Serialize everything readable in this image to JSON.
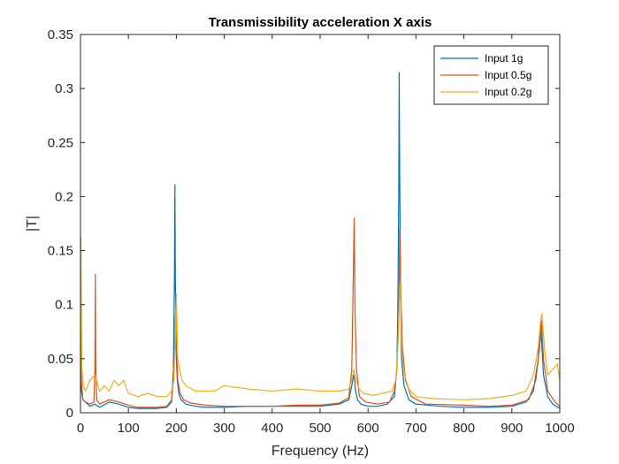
{
  "chart_data": {
    "type": "line",
    "title": "Transmissibility acceleration X axis",
    "xlabel": "Frequency (Hz)",
    "ylabel": "|T|",
    "xlim": [
      0,
      1000
    ],
    "ylim": [
      0,
      0.35
    ],
    "xticks": [
      0,
      100,
      200,
      300,
      400,
      500,
      600,
      700,
      800,
      900,
      1000
    ],
    "yticks": [
      0,
      0.05,
      0.1,
      0.15,
      0.2,
      0.25,
      0.3,
      0.35
    ],
    "ytick_labels": [
      "0",
      "0.05",
      "0.1",
      "0.15",
      "0.2",
      "0.25",
      "0.3",
      "0.35"
    ],
    "grid": false,
    "legend_position": "top-right",
    "series": [
      {
        "name": "Input 1g",
        "color": "#0072BD",
        "x": [
          0,
          2,
          5,
          10,
          20,
          30,
          40,
          60,
          80,
          100,
          120,
          140,
          160,
          180,
          190,
          194,
          196,
          197,
          198,
          200,
          202,
          205,
          210,
          220,
          240,
          260,
          300,
          350,
          400,
          450,
          500,
          540,
          560,
          566,
          570,
          572,
          574,
          578,
          585,
          600,
          620,
          640,
          655,
          660,
          662,
          664,
          665,
          666,
          668,
          670,
          675,
          685,
          700,
          750,
          800,
          850,
          900,
          930,
          945,
          955,
          960,
          963,
          966,
          975,
          985,
          1000
        ],
        "y": [
          0.06,
          0.02,
          0.012,
          0.01,
          0.006,
          0.008,
          0.005,
          0.01,
          0.008,
          0.005,
          0.004,
          0.004,
          0.004,
          0.005,
          0.01,
          0.04,
          0.12,
          0.211,
          0.12,
          0.05,
          0.03,
          0.018,
          0.012,
          0.008,
          0.006,
          0.005,
          0.005,
          0.006,
          0.006,
          0.006,
          0.006,
          0.008,
          0.012,
          0.025,
          0.035,
          0.03,
          0.02,
          0.012,
          0.008,
          0.006,
          0.006,
          0.008,
          0.015,
          0.04,
          0.09,
          0.2,
          0.315,
          0.22,
          0.1,
          0.05,
          0.025,
          0.012,
          0.008,
          0.006,
          0.005,
          0.005,
          0.006,
          0.01,
          0.02,
          0.05,
          0.082,
          0.06,
          0.035,
          0.015,
          0.008,
          0.004
        ]
      },
      {
        "name": "Input 0.5g",
        "color": "#D95319",
        "x": [
          0,
          2,
          5,
          10,
          20,
          28,
          30,
          31,
          32,
          34,
          40,
          60,
          80,
          100,
          120,
          140,
          160,
          180,
          190,
          194,
          197,
          198,
          200,
          203,
          208,
          215,
          230,
          260,
          300,
          350,
          400,
          450,
          500,
          540,
          560,
          566,
          569,
          571,
          573,
          576,
          582,
          595,
          620,
          645,
          655,
          660,
          664,
          665,
          666,
          667,
          669,
          672,
          678,
          690,
          720,
          800,
          850,
          900,
          935,
          950,
          958,
          962,
          966,
          975,
          990,
          1000
        ],
        "y": [
          0.11,
          0.03,
          0.012,
          0.01,
          0.008,
          0.01,
          0.04,
          0.128,
          0.04,
          0.012,
          0.008,
          0.012,
          0.01,
          0.007,
          0.005,
          0.005,
          0.005,
          0.006,
          0.012,
          0.03,
          0.07,
          0.09,
          0.06,
          0.03,
          0.018,
          0.012,
          0.009,
          0.007,
          0.006,
          0.006,
          0.006,
          0.007,
          0.007,
          0.009,
          0.014,
          0.04,
          0.12,
          0.18,
          0.09,
          0.04,
          0.015,
          0.01,
          0.008,
          0.01,
          0.02,
          0.04,
          0.08,
          0.12,
          0.17,
          0.14,
          0.1,
          0.06,
          0.03,
          0.015,
          0.008,
          0.007,
          0.006,
          0.007,
          0.012,
          0.03,
          0.06,
          0.085,
          0.05,
          0.02,
          0.01,
          0.006
        ]
      },
      {
        "name": "Input 0.2g",
        "color": "#EDB120",
        "x": [
          0,
          1,
          3,
          6,
          10,
          15,
          20,
          30,
          40,
          50,
          60,
          70,
          80,
          90,
          100,
          120,
          140,
          160,
          180,
          190,
          195,
          198,
          200,
          203,
          207,
          212,
          220,
          240,
          260,
          280,
          300,
          350,
          400,
          450,
          500,
          540,
          560,
          566,
          570,
          573,
          576,
          582,
          590,
          610,
          630,
          650,
          658,
          662,
          665,
          667,
          669,
          672,
          676,
          685,
          700,
          740,
          800,
          850,
          900,
          930,
          945,
          955,
          960,
          963,
          968,
          975,
          985,
          995,
          1000
        ],
        "y": [
          0.03,
          0.162,
          0.04,
          0.025,
          0.02,
          0.025,
          0.03,
          0.035,
          0.02,
          0.025,
          0.02,
          0.03,
          0.025,
          0.03,
          0.018,
          0.015,
          0.018,
          0.015,
          0.015,
          0.02,
          0.03,
          0.07,
          0.11,
          0.05,
          0.04,
          0.03,
          0.025,
          0.02,
          0.02,
          0.02,
          0.025,
          0.022,
          0.02,
          0.022,
          0.02,
          0.02,
          0.022,
          0.03,
          0.04,
          0.035,
          0.028,
          0.022,
          0.018,
          0.016,
          0.018,
          0.02,
          0.03,
          0.06,
          0.1,
          0.12,
          0.08,
          0.05,
          0.035,
          0.022,
          0.015,
          0.013,
          0.012,
          0.013,
          0.016,
          0.02,
          0.035,
          0.06,
          0.085,
          0.092,
          0.06,
          0.035,
          0.04,
          0.045,
          0.03
        ]
      }
    ]
  }
}
